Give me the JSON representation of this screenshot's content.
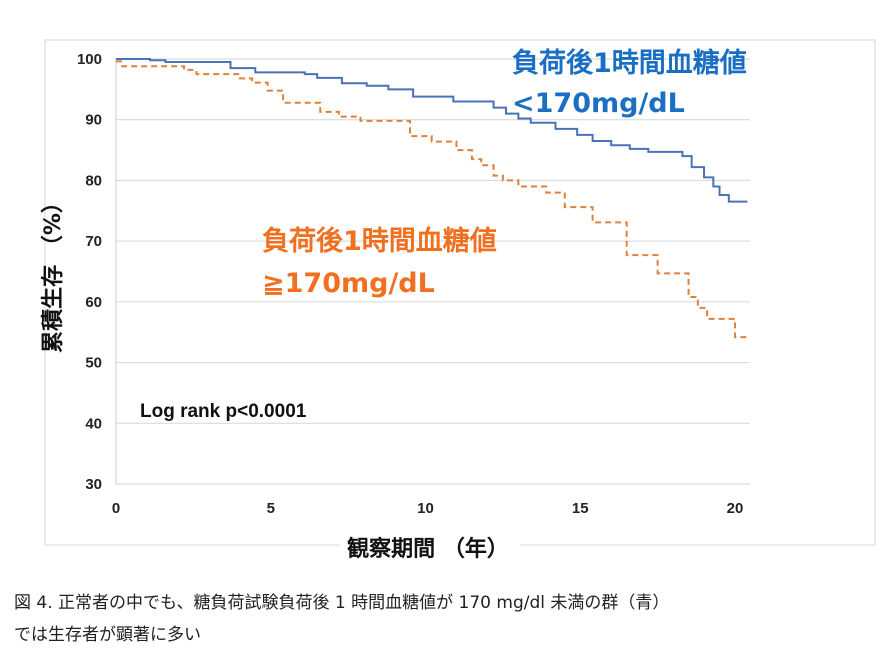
{
  "chart_data": {
    "type": "line",
    "subtype": "kaplan-meier-step",
    "xlabel": "観察期間 （年）",
    "ylabel": "累積生存 （%）",
    "xlim": [
      0,
      20.4
    ],
    "ylim": [
      30,
      100
    ],
    "xticks": [
      0,
      5,
      10,
      15,
      20
    ],
    "yticks": [
      100,
      90,
      80,
      70,
      60,
      50,
      40,
      30
    ],
    "grid": "horizontal",
    "annotation": "Log rank p<0.0001",
    "series": [
      {
        "name_line1": "負荷後1時間血糖値",
        "name_line2": "<170mg/dL",
        "color": "#4a72b8",
        "style": "solid",
        "points": [
          [
            0,
            100
          ],
          [
            1.1,
            99.8
          ],
          [
            1.6,
            99.5
          ],
          [
            3.7,
            98.5
          ],
          [
            4.5,
            97.8
          ],
          [
            6.1,
            97.5
          ],
          [
            6.5,
            96.9
          ],
          [
            7.3,
            96.0
          ],
          [
            8.1,
            95.6
          ],
          [
            8.8,
            95.0
          ],
          [
            9.6,
            93.8
          ],
          [
            10.9,
            93.0
          ],
          [
            12.2,
            92.0
          ],
          [
            12.6,
            91.0
          ],
          [
            13.0,
            90.2
          ],
          [
            13.4,
            89.5
          ],
          [
            14.2,
            88.5
          ],
          [
            14.9,
            87.5
          ],
          [
            15.4,
            86.5
          ],
          [
            16.0,
            85.8
          ],
          [
            16.6,
            85.2
          ],
          [
            17.2,
            84.7
          ],
          [
            18.3,
            84.0
          ],
          [
            18.6,
            82.2
          ],
          [
            19.0,
            80.5
          ],
          [
            19.3,
            79.0
          ],
          [
            19.5,
            77.6
          ],
          [
            19.8,
            76.5
          ],
          [
            20.4,
            76.5
          ]
        ]
      },
      {
        "name_line1": "負荷後1時間血糖値",
        "name_line2": "≧170mg/dL",
        "color": "#e0803a",
        "style": "dashed",
        "points": [
          [
            0,
            99.6
          ],
          [
            0.2,
            98.8
          ],
          [
            2.2,
            98.2
          ],
          [
            2.6,
            97.5
          ],
          [
            4.0,
            96.8
          ],
          [
            4.4,
            96.1
          ],
          [
            4.9,
            94.8
          ],
          [
            5.4,
            92.8
          ],
          [
            6.6,
            91.3
          ],
          [
            7.2,
            90.5
          ],
          [
            7.9,
            89.8
          ],
          [
            9.5,
            87.3
          ],
          [
            10.2,
            86.4
          ],
          [
            11.0,
            85.0
          ],
          [
            11.5,
            83.5
          ],
          [
            11.8,
            82.5
          ],
          [
            12.2,
            80.8
          ],
          [
            12.5,
            80.0
          ],
          [
            13.0,
            79.0
          ],
          [
            13.9,
            78.0
          ],
          [
            14.5,
            75.6
          ],
          [
            15.4,
            73.1
          ],
          [
            16.5,
            67.7
          ],
          [
            17.5,
            64.7
          ],
          [
            18.5,
            60.8
          ],
          [
            18.8,
            59.0
          ],
          [
            19.1,
            57.2
          ],
          [
            20.0,
            54.2
          ],
          [
            20.4,
            54.2
          ]
        ]
      }
    ]
  },
  "caption": {
    "line1": "図 4. 正常者の中でも、糖負荷試験負荷後 1 時間血糖値が 170 mg/dl 未満の群（青）",
    "line2": "では生存者が顕著に多い"
  }
}
